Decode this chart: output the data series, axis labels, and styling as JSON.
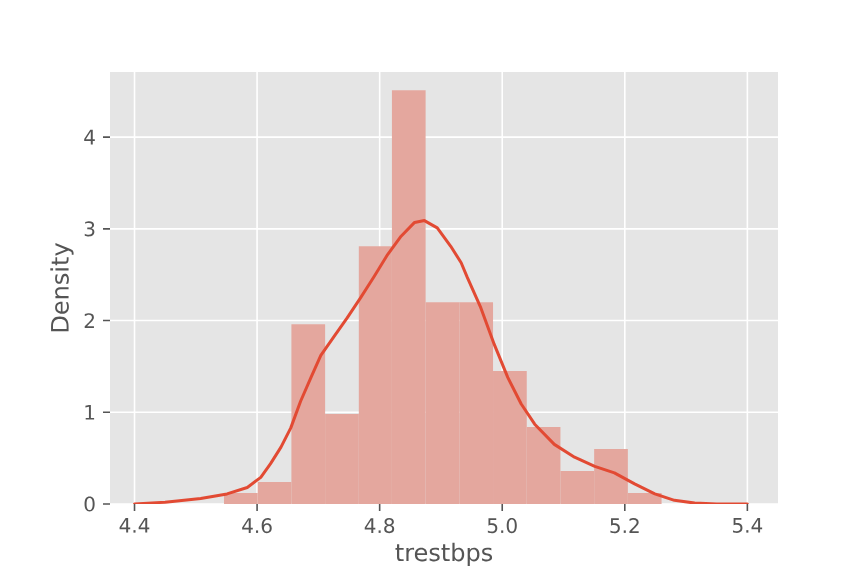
{
  "chart_data": {
    "type": "histogram",
    "xlabel": "trestbps",
    "ylabel": "Density",
    "series": [
      {
        "color": "#e4a79e",
        "bins": [
          4.546,
          4.601,
          4.656,
          4.711,
          4.766,
          4.82,
          4.875,
          4.93,
          4.985,
          5.04,
          5.095,
          5.15,
          5.205,
          5.26
        ],
        "values": [
          0.12,
          0.24,
          1.96,
          0.98,
          2.81,
          4.51,
          2.2,
          2.2,
          1.45,
          0.84,
          0.36,
          0.6,
          0.12
        ]
      },
      {
        "type": "line",
        "color": "#e24a33",
        "x": [
          4.4,
          4.45,
          4.508,
          4.551,
          4.584,
          4.606,
          4.622,
          4.639,
          4.655,
          4.671,
          4.688,
          4.704,
          4.726,
          4.747,
          4.769,
          4.791,
          4.813,
          4.835,
          4.857,
          4.873,
          4.894,
          4.916,
          4.933,
          4.943,
          4.965,
          4.987,
          5.009,
          5.031,
          5.053,
          5.085,
          5.118,
          5.151,
          5.183,
          5.216,
          5.249,
          5.281,
          5.314,
          5.35,
          5.4
        ],
        "values": [
          0.0,
          0.02,
          0.06,
          0.11,
          0.18,
          0.29,
          0.44,
          0.62,
          0.83,
          1.12,
          1.38,
          1.62,
          1.83,
          2.03,
          2.25,
          2.48,
          2.72,
          2.92,
          3.07,
          3.09,
          3.01,
          2.81,
          2.63,
          2.47,
          2.14,
          1.74,
          1.38,
          1.09,
          0.87,
          0.65,
          0.51,
          0.41,
          0.34,
          0.22,
          0.11,
          0.04,
          0.01,
          0.0,
          0.0
        ]
      }
    ],
    "xlim": [
      4.36,
      5.45
    ],
    "ylim": [
      0,
      4.71
    ],
    "xticks": [
      4.4,
      4.6,
      4.8,
      {
        "value": 5,
        "label": "5.0"
      },
      5.2,
      5.4
    ],
    "yticks": [
      0,
      1,
      2,
      3,
      4
    ],
    "grid": true
  }
}
